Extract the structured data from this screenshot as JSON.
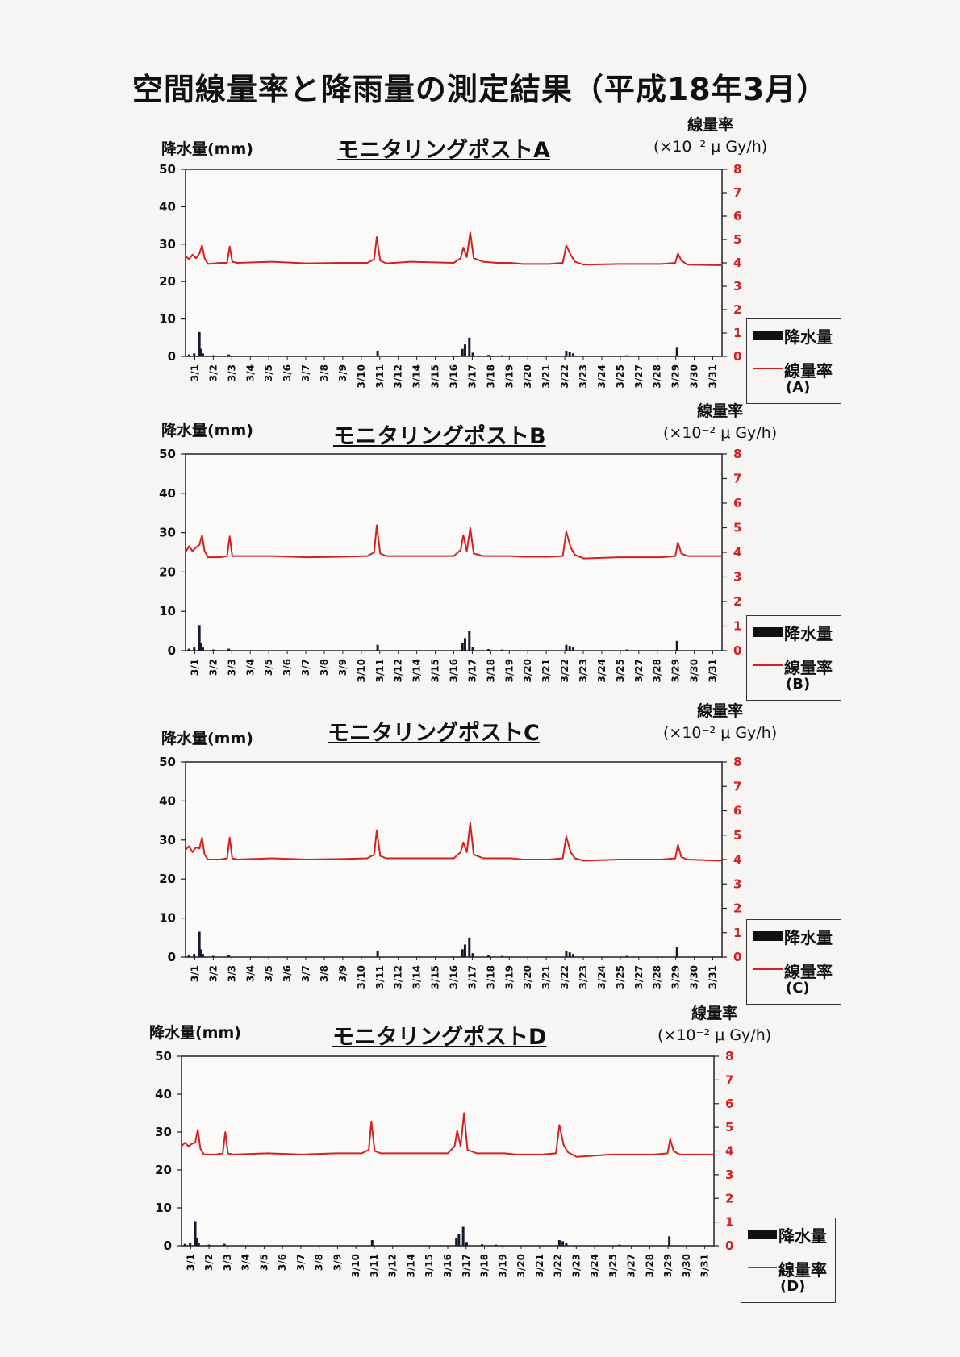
{
  "page_title": "空間線量率と降雨量の測定結果（平成18年3月）",
  "colors": {
    "dose_line": "#d42020",
    "rain_bar": "#151a30",
    "right_axis": "#d42020"
  },
  "labels": {
    "left_axis": "降水量(mm)",
    "right_axis_line1": "線量率",
    "right_axis_line2": "(×10⁻² μ Gy/h)",
    "legend_rain": "降水量",
    "legend_dose": "線量率"
  },
  "chart_data": [
    {
      "type": "bar+line",
      "title": "モニタリングポストA",
      "legend_suffix": "(A)",
      "left_axis": {
        "ylim": [
          0,
          50
        ],
        "ticks": [
          0,
          10,
          20,
          30,
          40,
          50
        ]
      },
      "right_axis": {
        "ylim": [
          0,
          8
        ],
        "ticks": [
          0,
          1,
          2,
          3,
          4,
          5,
          6,
          7,
          8
        ]
      },
      "x_ticks": [
        "3/1",
        "3/2",
        "3/3",
        "3/4",
        "3/5",
        "3/6",
        "3/7",
        "3/8",
        "3/9",
        "3/10",
        "3/11",
        "3/12",
        "3/14",
        "3/15",
        "3/16",
        "3/17",
        "3/18",
        "3/19",
        "3/20",
        "3/21",
        "3/22",
        "3/23",
        "3/24",
        "3/25",
        "3/27",
        "3/28",
        "3/29",
        "3/30",
        "3/31"
      ],
      "x_range": [
        1,
        32
      ],
      "rain": [
        [
          1.2,
          0.5
        ],
        [
          1.5,
          0.8
        ],
        [
          1.8,
          6.5
        ],
        [
          1.9,
          2.0
        ],
        [
          2.0,
          0.8
        ],
        [
          2.6,
          0.3
        ],
        [
          3.5,
          0.5
        ],
        [
          12.1,
          1.5
        ],
        [
          17.0,
          2.0
        ],
        [
          17.15,
          3.2
        ],
        [
          17.4,
          5.0
        ],
        [
          17.6,
          1.0
        ],
        [
          18.5,
          0.4
        ],
        [
          19.3,
          0.3
        ],
        [
          23.0,
          1.5
        ],
        [
          23.2,
          1.2
        ],
        [
          23.4,
          0.8
        ],
        [
          26.5,
          0.3
        ],
        [
          29.4,
          2.5
        ]
      ],
      "dose": [
        [
          1.0,
          4.3
        ],
        [
          1.2,
          4.15
        ],
        [
          1.4,
          4.35
        ],
        [
          1.6,
          4.2
        ],
        [
          1.8,
          4.4
        ],
        [
          1.95,
          4.75
        ],
        [
          2.1,
          4.2
        ],
        [
          2.3,
          3.95
        ],
        [
          3.0,
          4.0
        ],
        [
          3.4,
          4.0
        ],
        [
          3.55,
          4.7
        ],
        [
          3.7,
          4.05
        ],
        [
          4.0,
          4.0
        ],
        [
          6.0,
          4.05
        ],
        [
          8.0,
          3.98
        ],
        [
          10.0,
          4.0
        ],
        [
          11.5,
          4.0
        ],
        [
          11.9,
          4.15
        ],
        [
          12.05,
          5.1
        ],
        [
          12.25,
          4.1
        ],
        [
          12.6,
          3.98
        ],
        [
          14.0,
          4.05
        ],
        [
          16.5,
          4.0
        ],
        [
          16.9,
          4.2
        ],
        [
          17.05,
          4.65
        ],
        [
          17.25,
          4.25
        ],
        [
          17.45,
          5.3
        ],
        [
          17.65,
          4.2
        ],
        [
          18.2,
          4.05
        ],
        [
          19.0,
          4.0
        ],
        [
          19.8,
          4.0
        ],
        [
          20.5,
          3.95
        ],
        [
          22.0,
          3.95
        ],
        [
          22.8,
          4.0
        ],
        [
          23.0,
          4.75
        ],
        [
          23.25,
          4.35
        ],
        [
          23.5,
          4.05
        ],
        [
          24.0,
          3.92
        ],
        [
          26.0,
          3.95
        ],
        [
          27.0,
          3.95
        ],
        [
          28.5,
          3.95
        ],
        [
          29.3,
          4.0
        ],
        [
          29.45,
          4.4
        ],
        [
          29.65,
          4.1
        ],
        [
          30.0,
          3.92
        ],
        [
          32.0,
          3.9
        ]
      ]
    },
    {
      "type": "bar+line",
      "title": "モニタリングポストB",
      "legend_suffix": "(B)",
      "left_axis": {
        "ylim": [
          0,
          50
        ],
        "ticks": [
          0,
          10,
          20,
          30,
          40,
          50
        ]
      },
      "right_axis": {
        "ylim": [
          0,
          8
        ],
        "ticks": [
          0,
          1,
          2,
          3,
          4,
          5,
          6,
          7,
          8
        ]
      },
      "x_ticks": [
        "3/1",
        "3/2",
        "3/3",
        "3/4",
        "3/5",
        "3/6",
        "3/7",
        "3/8",
        "3/9",
        "3/10",
        "3/11",
        "3/12",
        "3/14",
        "3/15",
        "3/16",
        "3/17",
        "3/18",
        "3/19",
        "3/20",
        "3/21",
        "3/22",
        "3/23",
        "3/24",
        "3/25",
        "3/27",
        "3/28",
        "3/29",
        "3/30",
        "3/31"
      ],
      "x_range": [
        1,
        32
      ],
      "rain": [
        [
          1.2,
          0.5
        ],
        [
          1.5,
          0.8
        ],
        [
          1.8,
          6.5
        ],
        [
          1.9,
          2.0
        ],
        [
          2.0,
          0.8
        ],
        [
          2.6,
          0.3
        ],
        [
          3.5,
          0.5
        ],
        [
          12.1,
          1.5
        ],
        [
          17.0,
          2.0
        ],
        [
          17.15,
          3.2
        ],
        [
          17.4,
          5.0
        ],
        [
          17.6,
          1.0
        ],
        [
          18.5,
          0.4
        ],
        [
          19.3,
          0.3
        ],
        [
          23.0,
          1.5
        ],
        [
          23.2,
          1.2
        ],
        [
          23.4,
          0.8
        ],
        [
          26.5,
          0.3
        ],
        [
          29.4,
          2.5
        ]
      ],
      "dose": [
        [
          1.0,
          4.0
        ],
        [
          1.2,
          4.25
        ],
        [
          1.4,
          4.05
        ],
        [
          1.6,
          4.2
        ],
        [
          1.8,
          4.3
        ],
        [
          1.95,
          4.7
        ],
        [
          2.1,
          4.05
        ],
        [
          2.3,
          3.8
        ],
        [
          3.0,
          3.8
        ],
        [
          3.4,
          3.85
        ],
        [
          3.55,
          4.65
        ],
        [
          3.7,
          3.85
        ],
        [
          4.0,
          3.85
        ],
        [
          6.0,
          3.85
        ],
        [
          8.0,
          3.8
        ],
        [
          10.0,
          3.82
        ],
        [
          11.5,
          3.85
        ],
        [
          11.9,
          4.0
        ],
        [
          12.05,
          5.1
        ],
        [
          12.25,
          3.95
        ],
        [
          12.6,
          3.85
        ],
        [
          14.0,
          3.85
        ],
        [
          16.5,
          3.85
        ],
        [
          16.9,
          4.1
        ],
        [
          17.05,
          4.7
        ],
        [
          17.25,
          4.05
        ],
        [
          17.45,
          5.0
        ],
        [
          17.65,
          3.95
        ],
        [
          18.2,
          3.85
        ],
        [
          19.0,
          3.85
        ],
        [
          19.8,
          3.85
        ],
        [
          20.5,
          3.82
        ],
        [
          22.0,
          3.82
        ],
        [
          22.8,
          3.85
        ],
        [
          23.0,
          4.85
        ],
        [
          23.25,
          4.2
        ],
        [
          23.5,
          3.9
        ],
        [
          24.0,
          3.75
        ],
        [
          26.0,
          3.8
        ],
        [
          27.0,
          3.8
        ],
        [
          28.5,
          3.8
        ],
        [
          29.3,
          3.85
        ],
        [
          29.45,
          4.4
        ],
        [
          29.65,
          3.95
        ],
        [
          30.0,
          3.85
        ],
        [
          32.0,
          3.85
        ]
      ]
    },
    {
      "type": "bar+line",
      "title": "モニタリングポストC",
      "legend_suffix": "(C)",
      "left_axis": {
        "ylim": [
          0,
          50
        ],
        "ticks": [
          0,
          10,
          20,
          30,
          40,
          50
        ]
      },
      "right_axis": {
        "ylim": [
          0,
          8
        ],
        "ticks": [
          0,
          1,
          2,
          3,
          4,
          5,
          6,
          7,
          8
        ]
      },
      "x_ticks": [
        "3/1",
        "3/2",
        "3/3",
        "3/4",
        "3/5",
        "3/6",
        "3/7",
        "3/8",
        "3/9",
        "3/10",
        "3/11",
        "3/12",
        "3/14",
        "3/15",
        "3/16",
        "3/17",
        "3/18",
        "3/19",
        "3/20",
        "3/21",
        "3/22",
        "3/23",
        "3/24",
        "3/25",
        "3/27",
        "3/28",
        "3/29",
        "3/30",
        "3/31"
      ],
      "x_range": [
        1,
        32
      ],
      "rain": [
        [
          1.2,
          0.5
        ],
        [
          1.5,
          0.8
        ],
        [
          1.8,
          6.5
        ],
        [
          1.9,
          2.0
        ],
        [
          2.0,
          0.8
        ],
        [
          2.6,
          0.3
        ],
        [
          3.5,
          0.5
        ],
        [
          12.1,
          1.5
        ],
        [
          17.0,
          2.0
        ],
        [
          17.15,
          3.2
        ],
        [
          17.4,
          5.0
        ],
        [
          17.6,
          1.0
        ],
        [
          18.5,
          0.4
        ],
        [
          19.3,
          0.3
        ],
        [
          23.0,
          1.5
        ],
        [
          23.2,
          1.2
        ],
        [
          23.4,
          0.8
        ],
        [
          26.5,
          0.3
        ],
        [
          29.4,
          2.5
        ]
      ],
      "dose": [
        [
          1.0,
          4.4
        ],
        [
          1.2,
          4.55
        ],
        [
          1.4,
          4.3
        ],
        [
          1.6,
          4.5
        ],
        [
          1.8,
          4.45
        ],
        [
          1.95,
          4.9
        ],
        [
          2.1,
          4.2
        ],
        [
          2.3,
          4.0
        ],
        [
          3.0,
          4.0
        ],
        [
          3.4,
          4.05
        ],
        [
          3.55,
          4.9
        ],
        [
          3.7,
          4.05
        ],
        [
          4.0,
          4.0
        ],
        [
          6.0,
          4.05
        ],
        [
          8.0,
          4.0
        ],
        [
          10.0,
          4.02
        ],
        [
          11.5,
          4.05
        ],
        [
          11.9,
          4.2
        ],
        [
          12.05,
          5.2
        ],
        [
          12.25,
          4.15
        ],
        [
          12.6,
          4.05
        ],
        [
          14.0,
          4.05
        ],
        [
          16.5,
          4.05
        ],
        [
          16.9,
          4.3
        ],
        [
          17.05,
          4.7
        ],
        [
          17.25,
          4.3
        ],
        [
          17.45,
          5.5
        ],
        [
          17.65,
          4.2
        ],
        [
          18.2,
          4.05
        ],
        [
          19.0,
          4.05
        ],
        [
          19.8,
          4.05
        ],
        [
          20.5,
          4.0
        ],
        [
          22.0,
          4.0
        ],
        [
          22.8,
          4.05
        ],
        [
          23.0,
          4.95
        ],
        [
          23.25,
          4.3
        ],
        [
          23.5,
          4.05
        ],
        [
          24.0,
          3.95
        ],
        [
          26.0,
          4.0
        ],
        [
          27.0,
          4.0
        ],
        [
          28.5,
          4.0
        ],
        [
          29.3,
          4.05
        ],
        [
          29.45,
          4.6
        ],
        [
          29.65,
          4.1
        ],
        [
          30.0,
          4.0
        ],
        [
          32.0,
          3.95
        ]
      ]
    },
    {
      "type": "bar+line",
      "title": "モニタリングポストD",
      "legend_suffix": "(D)",
      "left_axis": {
        "ylim": [
          0,
          50
        ],
        "ticks": [
          0,
          10,
          20,
          30,
          40,
          50
        ]
      },
      "right_axis": {
        "ylim": [
          0,
          8
        ],
        "ticks": [
          0,
          1,
          2,
          3,
          4,
          5,
          6,
          7,
          8
        ]
      },
      "x_ticks": [
        "3/1",
        "3/2",
        "3/3",
        "3/4",
        "3/5",
        "3/6",
        "3/7",
        "3/8",
        "3/9",
        "3/10",
        "3/11",
        "3/12",
        "3/14",
        "3/15",
        "3/16",
        "3/17",
        "3/18",
        "3/19",
        "3/20",
        "3/21",
        "3/22",
        "3/23",
        "3/24",
        "3/25",
        "3/27",
        "3/28",
        "3/29",
        "3/30",
        "3/31"
      ],
      "x_range": [
        1,
        32
      ],
      "rain": [
        [
          1.2,
          0.5
        ],
        [
          1.5,
          0.8
        ],
        [
          1.8,
          6.5
        ],
        [
          1.9,
          2.0
        ],
        [
          2.0,
          0.8
        ],
        [
          2.6,
          0.3
        ],
        [
          3.5,
          0.5
        ],
        [
          12.1,
          1.5
        ],
        [
          17.0,
          2.0
        ],
        [
          17.15,
          3.2
        ],
        [
          17.4,
          5.0
        ],
        [
          17.6,
          1.0
        ],
        [
          18.5,
          0.4
        ],
        [
          19.3,
          0.3
        ],
        [
          23.0,
          1.5
        ],
        [
          23.2,
          1.2
        ],
        [
          23.4,
          0.8
        ],
        [
          26.5,
          0.3
        ],
        [
          29.4,
          2.5
        ]
      ],
      "dose": [
        [
          1.0,
          4.2
        ],
        [
          1.2,
          4.35
        ],
        [
          1.4,
          4.2
        ],
        [
          1.6,
          4.3
        ],
        [
          1.8,
          4.35
        ],
        [
          1.95,
          4.9
        ],
        [
          2.1,
          4.1
        ],
        [
          2.3,
          3.85
        ],
        [
          3.0,
          3.85
        ],
        [
          3.4,
          3.9
        ],
        [
          3.55,
          4.8
        ],
        [
          3.7,
          3.9
        ],
        [
          4.0,
          3.85
        ],
        [
          6.0,
          3.9
        ],
        [
          8.0,
          3.85
        ],
        [
          10.0,
          3.9
        ],
        [
          11.5,
          3.9
        ],
        [
          11.9,
          4.05
        ],
        [
          12.05,
          5.25
        ],
        [
          12.25,
          4.0
        ],
        [
          12.6,
          3.9
        ],
        [
          14.0,
          3.9
        ],
        [
          16.5,
          3.9
        ],
        [
          16.9,
          4.2
        ],
        [
          17.05,
          4.85
        ],
        [
          17.25,
          4.2
        ],
        [
          17.45,
          5.6
        ],
        [
          17.65,
          4.05
        ],
        [
          18.2,
          3.9
        ],
        [
          19.0,
          3.9
        ],
        [
          19.8,
          3.9
        ],
        [
          20.5,
          3.85
        ],
        [
          22.0,
          3.85
        ],
        [
          22.8,
          3.9
        ],
        [
          23.0,
          5.1
        ],
        [
          23.25,
          4.25
        ],
        [
          23.5,
          3.95
        ],
        [
          24.0,
          3.75
        ],
        [
          26.0,
          3.85
        ],
        [
          27.0,
          3.85
        ],
        [
          28.5,
          3.85
        ],
        [
          29.3,
          3.9
        ],
        [
          29.45,
          4.5
        ],
        [
          29.65,
          4.0
        ],
        [
          30.0,
          3.85
        ],
        [
          32.0,
          3.85
        ]
      ]
    }
  ]
}
